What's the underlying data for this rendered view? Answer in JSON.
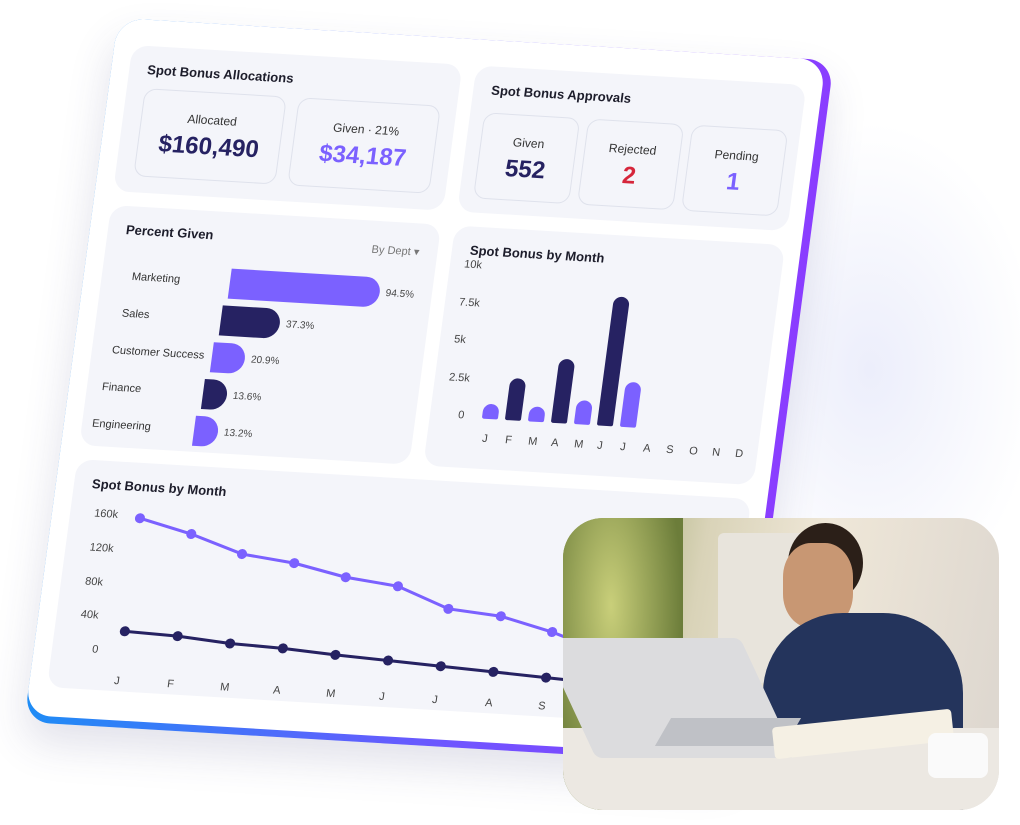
{
  "allocations": {
    "title": "Spot Bonus Allocations",
    "allocated_label": "Allocated",
    "allocated_value": "$160,490",
    "given_label": "Given · 21%",
    "given_value": "$34,187"
  },
  "approvals": {
    "title": "Spot Bonus Approvals",
    "given_label": "Given",
    "given_value": "552",
    "rejected_label": "Rejected",
    "rejected_value": "2",
    "pending_label": "Pending",
    "pending_value": "1"
  },
  "colors": {
    "purple": "#7b61ff",
    "navy": "#262262",
    "red": "#d6263b"
  },
  "chart_data": [
    {
      "type": "bar",
      "orientation": "horizontal",
      "title": "Percent Given",
      "filter": "By Dept",
      "categories": [
        "Marketing",
        "Sales",
        "Customer Success",
        "Finance",
        "Engineering"
      ],
      "values": [
        94.5,
        37.3,
        20.9,
        13.6,
        13.2
      ],
      "labels": [
        "94.5%",
        "37.3%",
        "20.9%",
        "13.6%",
        "13.2%"
      ],
      "unit": "%"
    },
    {
      "type": "bar",
      "title": "Spot Bonus by Month",
      "categories": [
        "J",
        "F",
        "M",
        "A",
        "M",
        "J",
        "J",
        "A",
        "S",
        "O",
        "N",
        "D"
      ],
      "values": [
        1000,
        2800,
        1000,
        4300,
        1600,
        8600,
        3000,
        null,
        null,
        null,
        null,
        null
      ],
      "yticks": [
        "0",
        "2.5k",
        "5k",
        "7.5k",
        "10k"
      ],
      "ylim": [
        0,
        10000
      ]
    },
    {
      "type": "line",
      "title": "Spot Bonus by Month",
      "categories": [
        "J",
        "F",
        "M",
        "A",
        "M",
        "J",
        "J",
        "A",
        "S"
      ],
      "yticks": [
        "0",
        "40k",
        "80k",
        "120k",
        "160k"
      ],
      "ylim": [
        0,
        160000
      ],
      "series": [
        {
          "values": [
            160000,
            145000,
            125000,
            118000,
            105000,
            98000,
            75000,
            70000,
            55000
          ]
        },
        {
          "values": [
            26000,
            24000,
            19000,
            17000,
            13000,
            10000,
            7000,
            4000,
            1000
          ]
        }
      ]
    }
  ]
}
